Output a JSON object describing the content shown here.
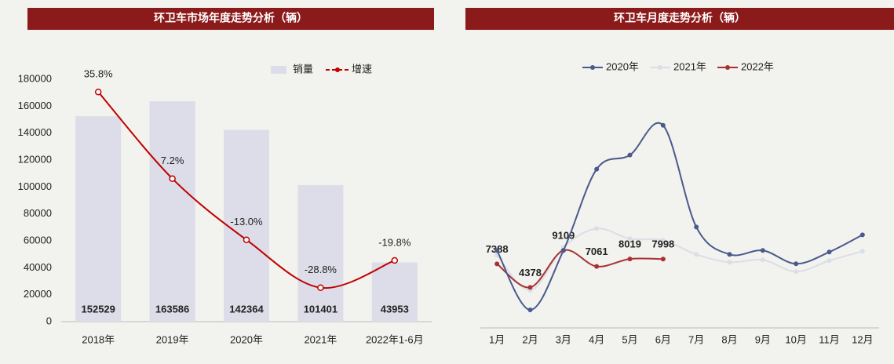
{
  "chart_data": [
    {
      "type": "bar",
      "title": "环卫车市场年度走势分析（辆）",
      "categories": [
        "2018年",
        "2019年",
        "2020年",
        "2021年",
        "2022年1-6月"
      ],
      "series": [
        {
          "name": "销量",
          "type": "bar",
          "color": "#dcdde8",
          "values": [
            152529,
            163586,
            142364,
            101401,
            43953
          ]
        },
        {
          "name": "增速",
          "type": "line",
          "axis": "y2",
          "color": "#c00000",
          "values": [
            35.8,
            7.2,
            -13.0,
            -28.8,
            -19.8
          ],
          "value_labels": [
            "35.8%",
            "7.2%",
            "-13.0%",
            "-28.8%",
            "-19.8%"
          ]
        }
      ],
      "ylim": [
        0,
        180000
      ],
      "yticks": [
        0,
        20000,
        40000,
        60000,
        80000,
        100000,
        120000,
        140000,
        160000,
        180000
      ],
      "y2lim": [
        -40,
        40
      ],
      "legend": "top-right"
    },
    {
      "type": "line",
      "title": "环卫车月度走势分析（辆）",
      "categories": [
        "1月",
        "2月",
        "3月",
        "4月",
        "5月",
        "6月",
        "7月",
        "8月",
        "9月",
        "10月",
        "11月",
        "12月"
      ],
      "series": [
        {
          "name": "2020年",
          "color": "#4a5a8c",
          "values": [
            9100,
            1500,
            9100,
            19500,
            21300,
            25100,
            12100,
            8600,
            9100,
            7400,
            8900,
            11100
          ]
        },
        {
          "name": "2021年",
          "color": "#dcdde8",
          "values": [
            8500,
            4000,
            9500,
            11900,
            10600,
            10400,
            8600,
            7600,
            7900,
            6400,
            7800,
            9000
          ]
        },
        {
          "name": "2022年",
          "color": "#a83232",
          "values": [
            7388,
            4378,
            9109,
            7061,
            8019,
            7998,
            null,
            null,
            null,
            null,
            null,
            null
          ],
          "labels": true
        }
      ],
      "ylim": [
        0,
        31000
      ],
      "legend": "top"
    }
  ]
}
